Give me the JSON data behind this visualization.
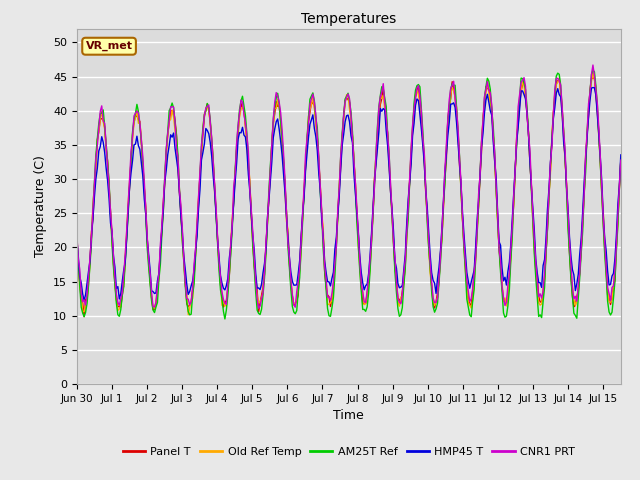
{
  "title": "Temperatures",
  "xlabel": "Time",
  "ylabel": "Temperature (C)",
  "ylim": [
    0,
    52
  ],
  "yticks": [
    0,
    5,
    10,
    15,
    20,
    25,
    30,
    35,
    40,
    45,
    50
  ],
  "xlim": [
    0,
    15.5
  ],
  "fig_bg_color": "#e8e8e8",
  "plot_bg_color": "#dcdcdc",
  "grid_color": "#ffffff",
  "series": [
    {
      "label": "Panel T",
      "color": "#dd0000"
    },
    {
      "label": "Old Ref Temp",
      "color": "#ffaa00"
    },
    {
      "label": "AM25T Ref",
      "color": "#00cc00"
    },
    {
      "label": "HMP45 T",
      "color": "#0000dd"
    },
    {
      "label": "CNR1 PRT",
      "color": "#cc00cc"
    }
  ],
  "annotation_text": "VR_met",
  "annotation_bg": "#ffffaa",
  "annotation_border": "#aa6600",
  "annotation_text_color": "#660000"
}
